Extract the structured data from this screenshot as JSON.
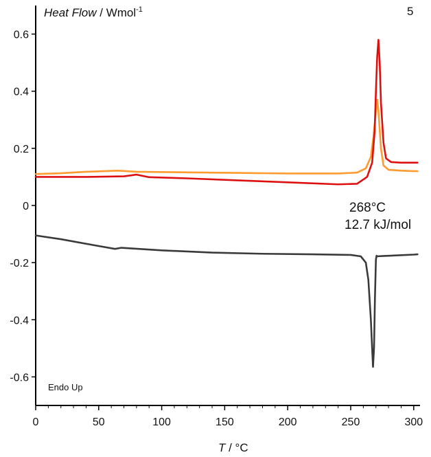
{
  "chart_data": {
    "type": "line",
    "panel_label": "5",
    "ylabel_italic": "Heat Flow",
    "ylabel_unit": " / Wmol",
    "ylabel_sup": "-1",
    "xlabel_italic": "T",
    "xlabel_unit": " / °C",
    "xlim": [
      0,
      305
    ],
    "ylim": [
      -0.7,
      0.7
    ],
    "x_ticks": [
      0,
      50,
      100,
      150,
      200,
      250,
      300
    ],
    "y_ticks": [
      -0.6,
      -0.4,
      -0.2,
      0,
      0.2,
      0.4,
      0.6
    ],
    "y_tick_labels": [
      "-0.6",
      "-0.4",
      "-0.2",
      "0",
      "0.2",
      "0.4",
      "0.6"
    ],
    "annotations": [
      "268°C",
      "12.7 kJ/mol"
    ],
    "note": "Endo Up",
    "series": [
      {
        "color": "#ff9a2e",
        "x": [
          0,
          20,
          40,
          65,
          80,
          120,
          160,
          200,
          240,
          255,
          262,
          266,
          268,
          270,
          271,
          272,
          274,
          276,
          280,
          290,
          300,
          303
        ],
        "y": [
          0.11,
          0.113,
          0.118,
          0.122,
          0.118,
          0.116,
          0.114,
          0.112,
          0.112,
          0.115,
          0.13,
          0.17,
          0.24,
          0.33,
          0.37,
          0.33,
          0.2,
          0.14,
          0.125,
          0.122,
          0.12,
          0.12
        ]
      },
      {
        "color": "#dd1010",
        "x": [
          0,
          40,
          70,
          80,
          90,
          120,
          160,
          200,
          240,
          255,
          263,
          267,
          269,
          270,
          271,
          272,
          273,
          274,
          276,
          278,
          282,
          290,
          300,
          303
        ],
        "y": [
          0.1,
          0.1,
          0.102,
          0.108,
          0.099,
          0.095,
          0.088,
          0.081,
          0.074,
          0.076,
          0.1,
          0.15,
          0.26,
          0.4,
          0.52,
          0.58,
          0.5,
          0.36,
          0.22,
          0.165,
          0.152,
          0.15,
          0.15,
          0.15
        ]
      },
      {
        "color": "#3a3a3a",
        "x": [
          0,
          20,
          45,
          63,
          68,
          100,
          140,
          180,
          220,
          250,
          258,
          262,
          264,
          266,
          267,
          267.7,
          268.5,
          269.2,
          270,
          270.5,
          271,
          275,
          280,
          290,
          300,
          303
        ],
        "y": [
          -0.105,
          -0.118,
          -0.138,
          -0.152,
          -0.148,
          -0.157,
          -0.165,
          -0.169,
          -0.171,
          -0.173,
          -0.178,
          -0.2,
          -0.26,
          -0.4,
          -0.5,
          -0.565,
          -0.5,
          -0.33,
          -0.19,
          -0.176,
          -0.178,
          -0.177,
          -0.176,
          -0.174,
          -0.172,
          -0.171
        ]
      }
    ]
  }
}
